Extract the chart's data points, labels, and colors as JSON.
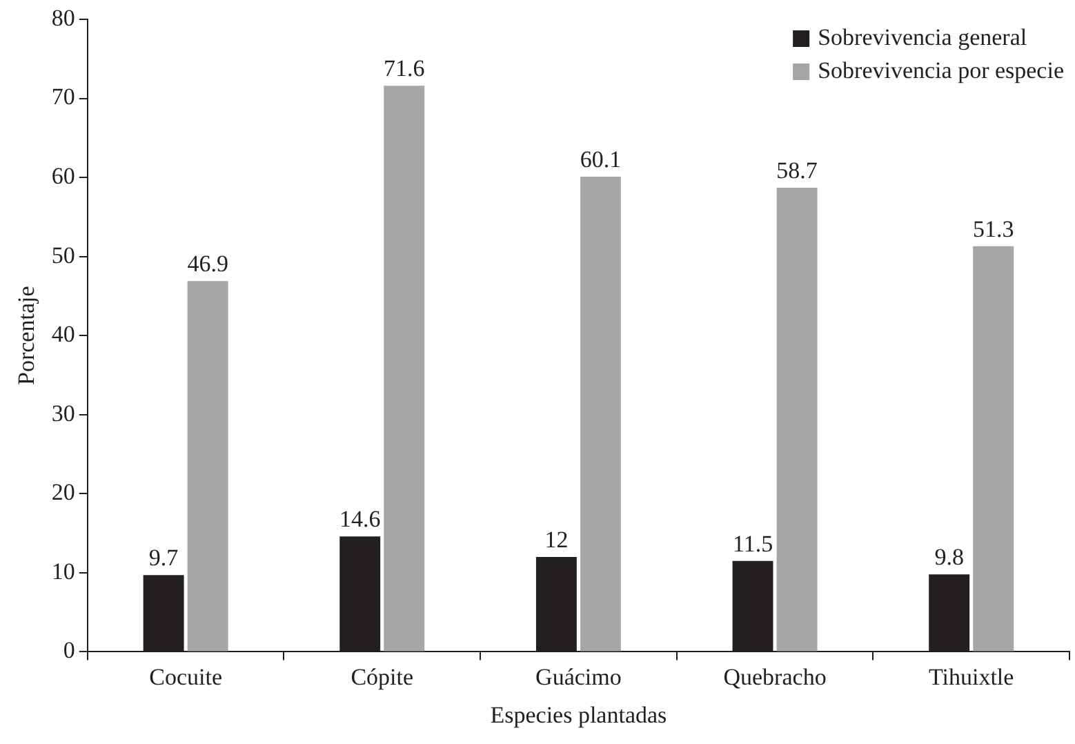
{
  "chart_data": {
    "type": "bar",
    "xlabel": "Especies plantadas",
    "ylabel": "Porcentaje",
    "categories": [
      "Cocuite",
      "Cópite",
      "Guácimo",
      "Quebracho",
      "Tihuixtle"
    ],
    "series": [
      {
        "name": "Sobrevivencia general",
        "color": "#231f20",
        "values": [
          9.7,
          14.6,
          12,
          11.5,
          9.8
        ]
      },
      {
        "name": "Sobrevivencia por especie",
        "color": "#a6a6a6",
        "values": [
          46.9,
          71.6,
          60.1,
          58.7,
          51.3
        ]
      }
    ],
    "ylim": [
      0,
      80
    ],
    "yticks": [
      0,
      10,
      20,
      30,
      40,
      50,
      60,
      70,
      80
    ],
    "grid": false,
    "legend": "top right",
    "data_labels": true
  }
}
